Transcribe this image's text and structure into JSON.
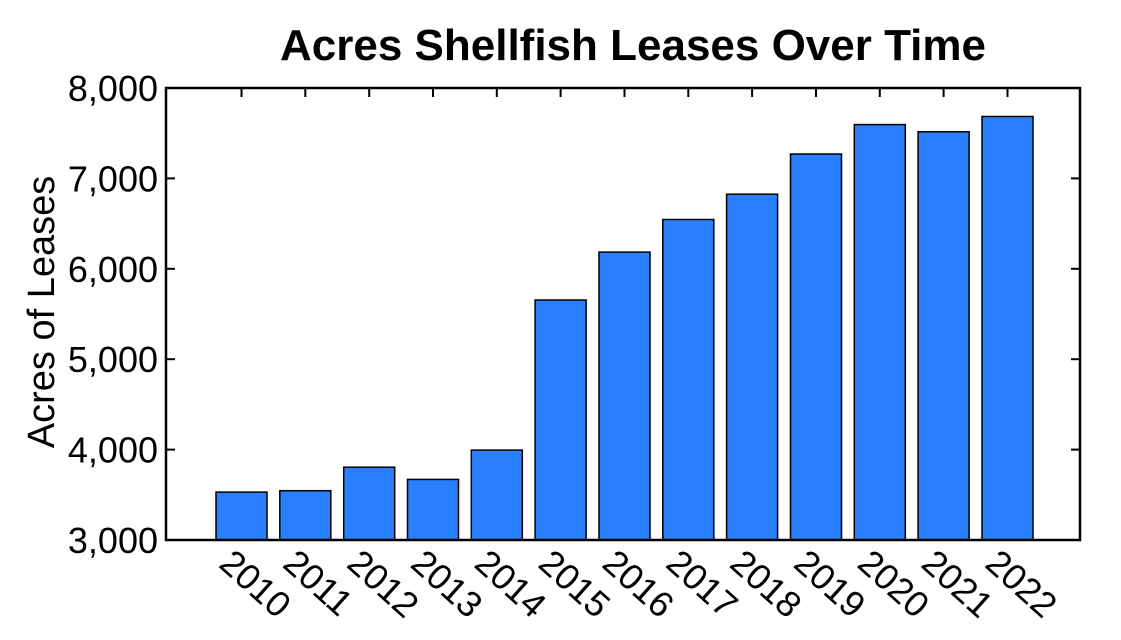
{
  "chart_data": {
    "type": "bar",
    "title": "Acres Shellfish Leases Over Time",
    "xlabel": "",
    "ylabel": "Acres of Leases",
    "categories": [
      "2010",
      "2011",
      "2012",
      "2013",
      "2014",
      "2015",
      "2016",
      "2017",
      "2018",
      "2019",
      "2020",
      "2021",
      "2022"
    ],
    "values": [
      3530,
      3545,
      3805,
      3670,
      3995,
      5655,
      6185,
      6545,
      6825,
      7270,
      7595,
      7515,
      7685
    ],
    "ylim": [
      3000,
      8000
    ],
    "yticks": [
      3000,
      4000,
      5000,
      6000,
      7000,
      8000
    ],
    "ytick_labels": [
      "3,000",
      "4,000",
      "5,000",
      "6,000",
      "7,000",
      "8,000"
    ],
    "bar_color": "#2a7fff",
    "grid": false,
    "legend": "none"
  }
}
